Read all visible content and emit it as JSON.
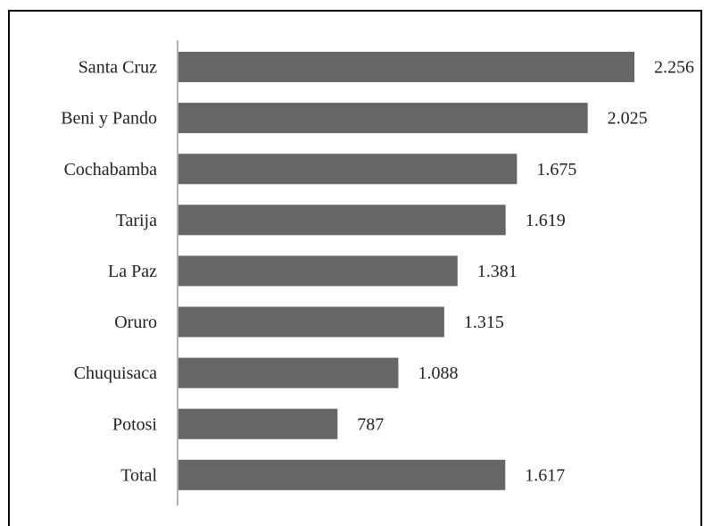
{
  "chart_data": {
    "type": "barh",
    "categories": [
      "Santa Cruz",
      "Beni y Pando",
      "Cochabamba",
      "Tarija",
      "La Paz",
      "Oruro",
      "Chuquisaca",
      "Potosi",
      "Total"
    ],
    "values": [
      2256,
      2025,
      1675,
      1619,
      1381,
      1315,
      1088,
      787,
      1617
    ],
    "value_labels": [
      "2.256",
      "2.025",
      "1.675",
      "1.619",
      "1.381",
      "1.315",
      "1.088",
      "787",
      "1.617"
    ],
    "color": "#666666"
  }
}
